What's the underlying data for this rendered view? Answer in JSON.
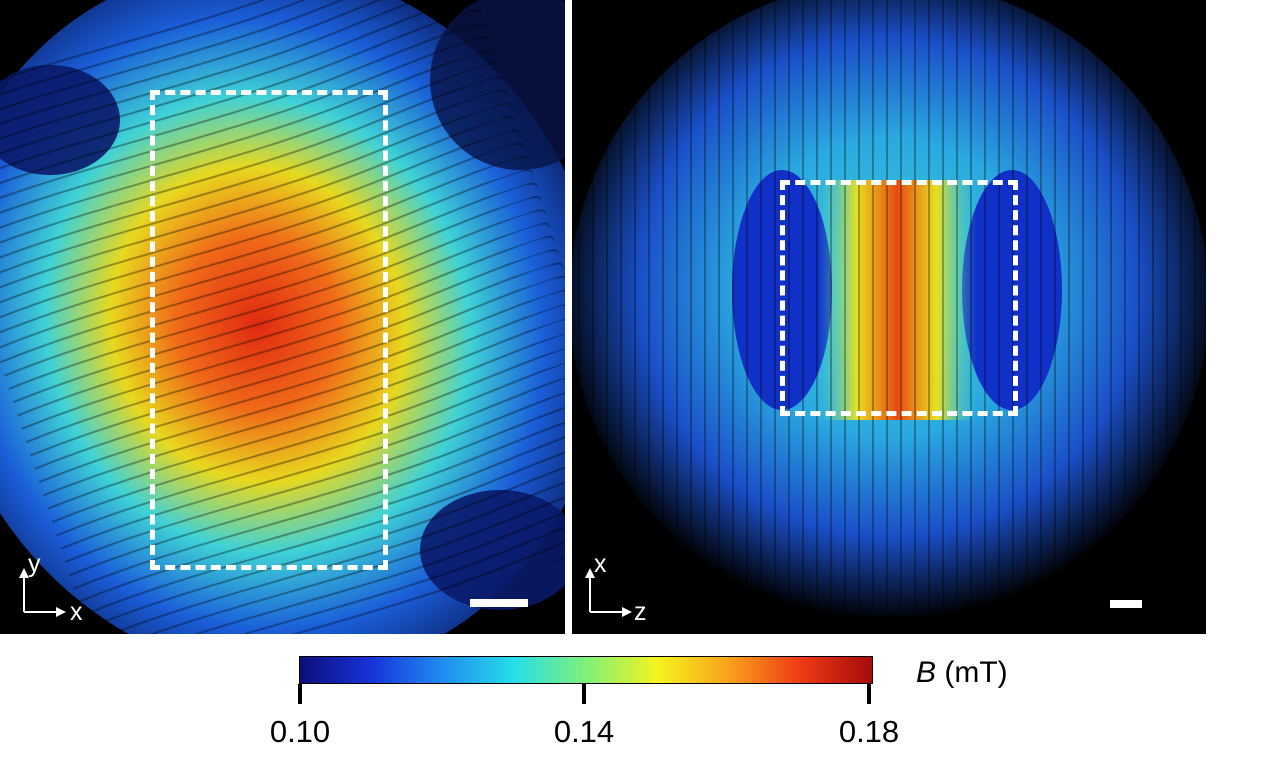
{
  "left_panel": {
    "axis_vertical": "y",
    "axis_horizontal": "x"
  },
  "right_panel": {
    "axis_vertical": "x",
    "axis_horizontal": "z"
  },
  "colorbar": {
    "symbol": "B",
    "unit": "(mT)",
    "ticks": [
      "0.10",
      "0.14",
      "0.18"
    ],
    "colors": [
      "#0c0e7a",
      "#1734d9",
      "#1f8df0",
      "#27dee8",
      "#7ff07a",
      "#f4f41e",
      "#f8a11c",
      "#ee3a14",
      "#a50b0b"
    ]
  }
}
